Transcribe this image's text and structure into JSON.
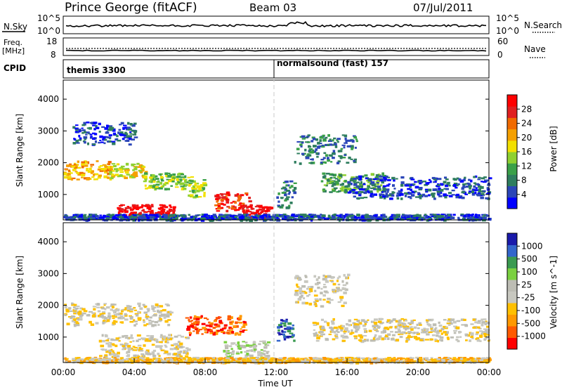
{
  "header": {
    "title": "Prince George (fitACF)",
    "beam": "Beam 03",
    "date": "07/Jul/2011"
  },
  "noise_panel": {
    "left_label": "N.Sky",
    "left_ticks": [
      "10^5",
      "10^0"
    ],
    "right_label": "N.Search",
    "right_ticks": [
      "10^5",
      "10^0"
    ]
  },
  "freq_panel": {
    "left_label_1": "Freq.",
    "left_label_2": "[MHz]",
    "left_ticks": [
      "18",
      "8"
    ],
    "right_label": "Nave",
    "right_ticks": [
      "60",
      "0"
    ]
  },
  "cpid_panel": {
    "label": "CPID",
    "program_1": "themis 3300",
    "program_2": "normalsound (fast) 157"
  },
  "colors": {
    "scale_power": [
      "#0000ff",
      "#2b46b8",
      "#2e7d5e",
      "#3aa048",
      "#8fd030",
      "#f2e000",
      "#f5a000",
      "#f06a00",
      "#e02020",
      "#ff0000"
    ],
    "scale_velocity": [
      "#ff0000",
      "#ff5a00",
      "#ff9900",
      "#ffc000",
      "#c8c8c0",
      "#bdbdb4",
      "#7ad040",
      "#3a9a50",
      "#3366cc",
      "#1a1aaa"
    ],
    "ground_scatter": "#c8c8c0"
  },
  "chart_data": [
    {
      "type": "heatmap",
      "name": "power",
      "ylabel": "Slant Range [km]",
      "yticks": [
        "1000",
        "2000",
        "3000",
        "4000"
      ],
      "ylim": [
        200,
        4600
      ],
      "xlim": [
        "00:00",
        "24:00"
      ],
      "colorbar_label": "Power [dB]",
      "colorbar_ticks": [
        "4",
        "8",
        "12",
        "16",
        "20",
        "24",
        "28"
      ],
      "regions": [
        {
          "t0": 0.0,
          "t1": 2.6,
          "r0": 1500,
          "r1": 2100,
          "level": 6
        },
        {
          "t0": 2.4,
          "t1": 4.6,
          "r0": 1550,
          "r1": 2000,
          "level": 5
        },
        {
          "t0": 4.5,
          "t1": 7.2,
          "r0": 1200,
          "r1": 1700,
          "level": 4
        },
        {
          "t0": 3.0,
          "t1": 6.2,
          "r0": 300,
          "r1": 700,
          "level": 9
        },
        {
          "t0": 7.0,
          "t1": 8.0,
          "r0": 900,
          "r1": 1500,
          "level": 4
        },
        {
          "t0": 8.5,
          "t1": 10.5,
          "r0": 500,
          "r1": 1100,
          "level": 8
        },
        {
          "t0": 10.0,
          "t1": 11.8,
          "r0": 250,
          "r1": 700,
          "level": 9
        },
        {
          "t0": 0.5,
          "t1": 4.0,
          "r0": 2600,
          "r1": 3300,
          "level": 1
        },
        {
          "t0": 12.0,
          "t1": 13.0,
          "r0": 600,
          "r1": 1500,
          "level": 2
        },
        {
          "t0": 13.0,
          "t1": 16.5,
          "r0": 2000,
          "r1": 2900,
          "level": 2
        },
        {
          "t0": 14.5,
          "t1": 18.0,
          "r0": 1100,
          "r1": 1700,
          "level": 3
        },
        {
          "t0": 16.0,
          "t1": 24.0,
          "r0": 900,
          "r1": 1600,
          "level": 1
        },
        {
          "t0": 0.0,
          "t1": 24.0,
          "r0": 220,
          "r1": 400,
          "level": 1
        }
      ]
    },
    {
      "type": "heatmap",
      "name": "velocity",
      "ylabel": "Slant Range [km]",
      "yticks": [
        "1000",
        "2000",
        "3000",
        "4000"
      ],
      "ylim": [
        200,
        4600
      ],
      "xlim": [
        "00:00",
        "24:00"
      ],
      "xticks": [
        "00:00",
        "04:00",
        "08:00",
        "12:00",
        "16:00",
        "20:00",
        "00:00"
      ],
      "xlabel": "Time UT",
      "colorbar_label": "Velocity [m s^-1]",
      "colorbar_ticks": [
        "-1000",
        "-500",
        "-100",
        "-25",
        "25",
        "100",
        "500",
        "1000"
      ],
      "regions": [
        {
          "t0": 0.0,
          "t1": 6.0,
          "r0": 1400,
          "r1": 2100,
          "level": 4
        },
        {
          "t0": 2.0,
          "t1": 7.0,
          "r0": 400,
          "r1": 1100,
          "level": 4
        },
        {
          "t0": 6.8,
          "t1": 10.2,
          "r0": 1100,
          "r1": 1700,
          "level": 1
        },
        {
          "t0": 9.0,
          "t1": 11.5,
          "r0": 300,
          "r1": 900,
          "level": 5
        },
        {
          "t0": 12.0,
          "t1": 13.0,
          "r0": 900,
          "r1": 1600,
          "level": 8
        },
        {
          "t0": 13.0,
          "t1": 16.0,
          "r0": 2000,
          "r1": 3000,
          "level": 4
        },
        {
          "t0": 14.0,
          "t1": 24.0,
          "r0": 900,
          "r1": 1600,
          "level": 4
        },
        {
          "t0": 0.0,
          "t1": 24.0,
          "r0": 220,
          "r1": 380,
          "level": 3
        }
      ]
    }
  ]
}
